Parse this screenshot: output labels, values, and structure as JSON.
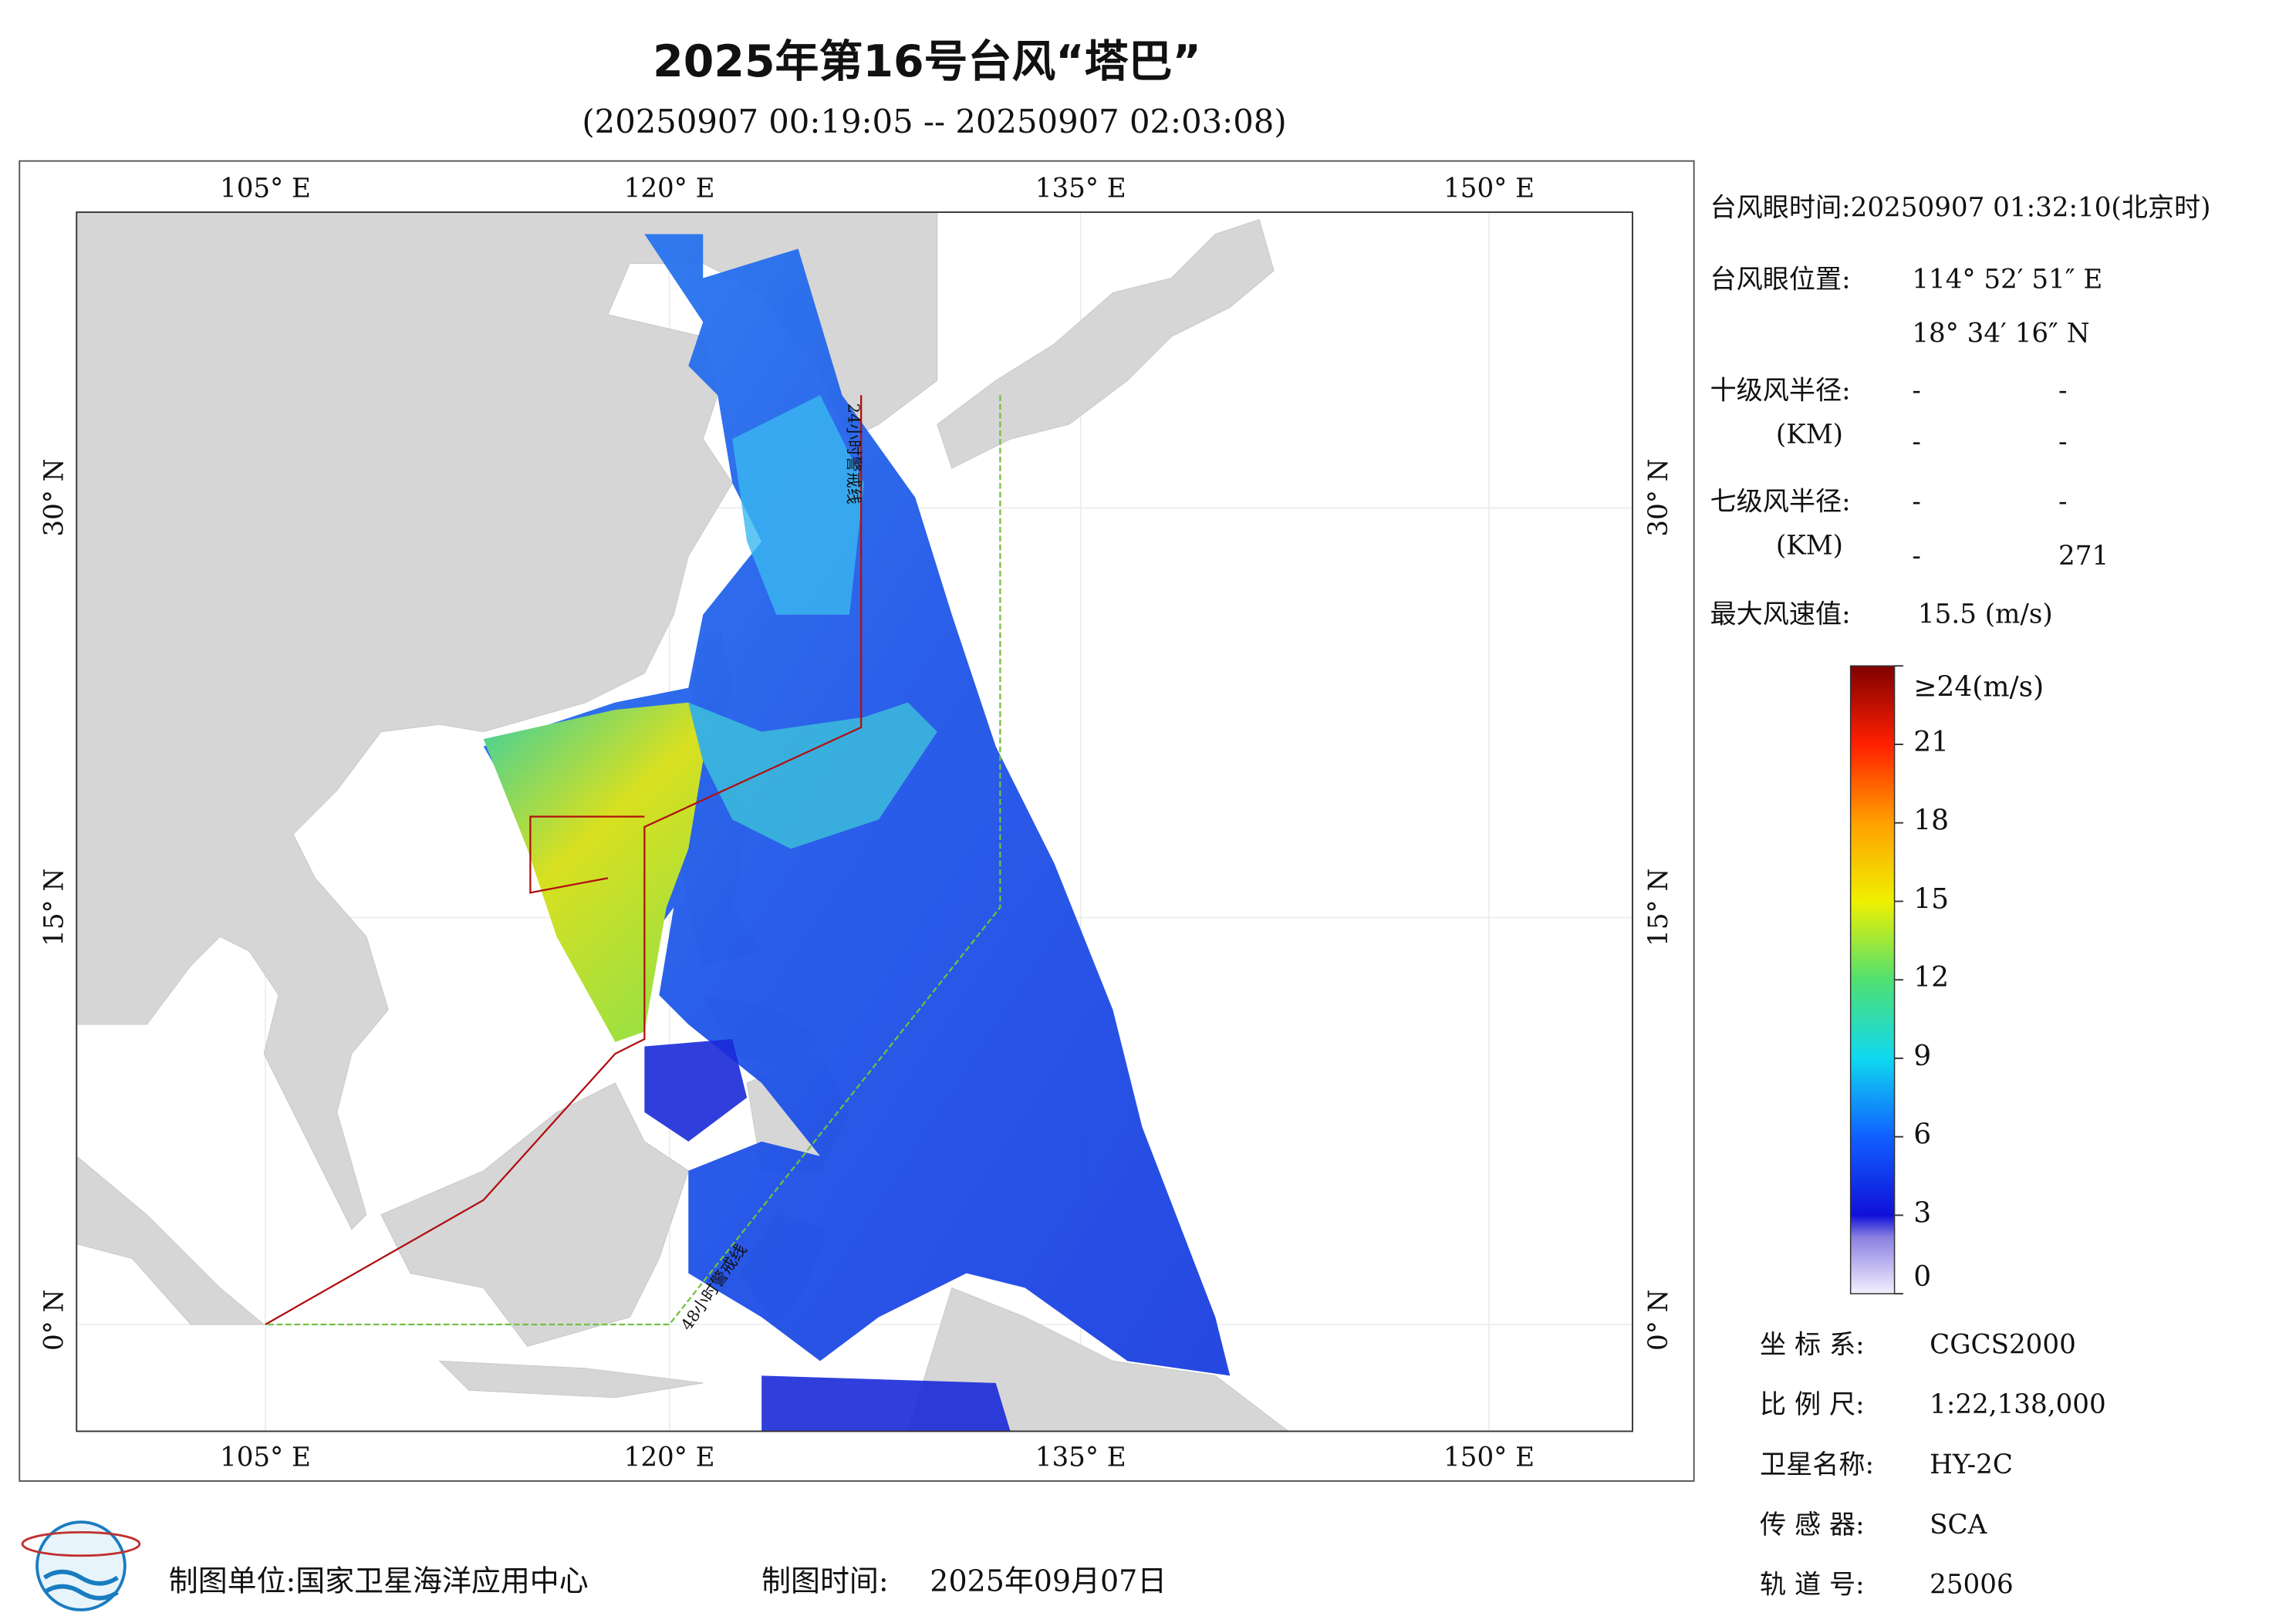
{
  "header": {
    "title": "2025年第16号台风“塔巴”",
    "subtitle": "(20250907 00:19:05 -- 20250907 02:03:08)"
  },
  "map": {
    "lon_labels": [
      "105° E",
      "120° E",
      "135° E",
      "150° E"
    ],
    "lat_labels": [
      "30° N",
      "15° N",
      "0° N"
    ],
    "warning_24h": "24小时警戒线",
    "warning_48h": "48小时警戒线"
  },
  "info": {
    "eye_time": "台风眼时间:20250907 01:32:10(北京时)",
    "eye_position_label": "台风眼位置:",
    "eye_lon": "114° 52′ 51″ E",
    "eye_lat": "18° 34′ 16″ N",
    "r10_label": "十级风半径:",
    "r10_values": [
      "-",
      "-",
      "-",
      "-"
    ],
    "r7_label": "七级风半径:",
    "r7_values": [
      "-",
      "-",
      "-",
      "271"
    ],
    "km_label": "(KM)",
    "max_wind_label": "最大风速值:",
    "max_wind_value": "15.5 (m/s)"
  },
  "colorbar": {
    "range": [
      0,
      24
    ],
    "ticks": [
      {
        "value": 24,
        "label": "≥24(m/s)"
      },
      21,
      18,
      15,
      12,
      9,
      6,
      3,
      0
    ]
  },
  "meta": [
    [
      "坐 标 系:",
      "CGCS2000"
    ],
    [
      "比 例 尺:",
      "1:22,138,000"
    ],
    [
      "卫星名称:",
      "HY-2C"
    ],
    [
      "传 感 器:",
      "SCA"
    ],
    [
      "轨 道 号:",
      "25006"
    ]
  ],
  "footer": {
    "unit_label": "制图单位:国家卫星海洋应用中心",
    "time_label": "制图时间:",
    "time_value": "2025年09月07日"
  }
}
